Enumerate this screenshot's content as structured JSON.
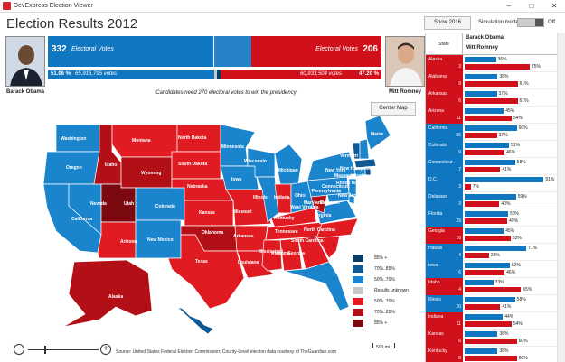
{
  "window": {
    "title": "DevExpress Election Viewer",
    "minimize": "–",
    "maximize": "□",
    "close": "✕"
  },
  "heading": "Election Results 2012",
  "toolbar": {
    "show_button": "Show 2016",
    "sim_label": "Simulation mode:",
    "sim_state": "Off"
  },
  "candidates": {
    "obama": {
      "name": "Barack Obama",
      "electoral_votes": "332",
      "ev_label": "Electoral Votes",
      "percent": "51.06 %",
      "votes": "65,915,795 votes",
      "color": "#0f76c2"
    },
    "romney": {
      "name": "Mitt Romney",
      "electoral_votes": "206",
      "ev_label": "Electoral Votes",
      "percent": "47.20 %",
      "votes": "60,933,504 votes",
      "color": "#d0101a"
    }
  },
  "notice": "Candidates need 270 electoral votes to win the presidency",
  "center_map": "Center Map",
  "states": {
    "washington": "Washington",
    "oregon": "Oregon",
    "california": "California",
    "nevada": "Nevada",
    "idaho": "Idaho",
    "montana": "Montana",
    "wyoming": "Wyoming",
    "utah": "Utah",
    "arizona": "Arizona",
    "colorado": "Colorado",
    "new_mexico": "New Mexico",
    "north_dakota": "North Dakota",
    "south_dakota": "South Dakota",
    "nebraska": "Nebraska",
    "kansas": "Kansas",
    "oklahoma": "Oklahoma",
    "texas": "Texas",
    "minnesota": "Minnesota",
    "iowa": "Iowa",
    "missouri": "Missouri",
    "arkansas": "Arkansas",
    "louisiana": "Louisiana",
    "wisconsin": "Wisconsin",
    "illinois": "Illinois",
    "michigan": "Michigan",
    "indiana": "Indiana",
    "ohio": "Ohio",
    "kentucky": "Kentucky",
    "tennessee": "Tennessee",
    "mississippi": "Mississippi",
    "alabama": "Alabama",
    "georgia": "Georgia",
    "florida": "Florida",
    "south_carolina": "South Carolina",
    "north_carolina": "North Carolina",
    "virginia": "Virginia",
    "west_virginia": "West Virginia",
    "pennsylvania": "Pennsylvania",
    "new_york": "New York",
    "maine": "Maine",
    "vermont": "Vermont",
    "new_hampshire": "New Hampshire",
    "massachusetts": "Massachusetts",
    "rhode_island": "Rhode Island",
    "connecticut": "Connecticut",
    "new_jersey": "New Jersey",
    "delaware": "Delaware",
    "maryland": "Maryland",
    "alaska": "Alaska",
    "hawaii": "Hawaii"
  },
  "legend": [
    {
      "label": "85% +",
      "color": "#0a3d66"
    },
    {
      "label": "70%..85%",
      "color": "#0d5a96"
    },
    {
      "label": "50%..70%",
      "color": "#1a84cc"
    },
    {
      "label": "Results unknown",
      "color": "#c8c8c8"
    },
    {
      "label": "50%..70%",
      "color": "#e01b22"
    },
    {
      "label": "70%..85%",
      "color": "#b30f16"
    },
    {
      "label": "85% +",
      "color": "#7a0a0f"
    }
  ],
  "source": "Source: United States Federal Election Commission; County-Level election data courtesy of TheGuardian.com",
  "scale": "500 mi",
  "zoom": {
    "minus": "−",
    "plus": "+"
  },
  "grid": {
    "col_state": "State",
    "col_obama": "Barack Obama",
    "col_romney": "Mitt Romney",
    "rows": [
      {
        "state": "Alaska",
        "ev": "3",
        "obama": "36%",
        "romney": "75%",
        "color": "#d0101a",
        "o": 0.36,
        "r": 0.75
      },
      {
        "state": "Alabama",
        "ev": "9",
        "obama": "38%",
        "romney": "61%",
        "color": "#d0101a",
        "o": 0.38,
        "r": 0.61
      },
      {
        "state": "Arkansas",
        "ev": "6",
        "obama": "37%",
        "romney": "61%",
        "color": "#d0101a",
        "o": 0.37,
        "r": 0.61
      },
      {
        "state": "Arizona",
        "ev": "11",
        "obama": "45%",
        "romney": "54%",
        "color": "#d0101a",
        "o": 0.45,
        "r": 0.54
      },
      {
        "state": "California",
        "ev": "55",
        "obama": "60%",
        "romney": "37%",
        "color": "#0f76c2",
        "o": 0.6,
        "r": 0.37
      },
      {
        "state": "Colorado",
        "ev": "9",
        "obama": "51%",
        "romney": "46%",
        "color": "#0f76c2",
        "o": 0.51,
        "r": 0.46
      },
      {
        "state": "Connecticut",
        "ev": "7",
        "obama": "58%",
        "romney": "41%",
        "color": "#0f76c2",
        "o": 0.58,
        "r": 0.41
      },
      {
        "state": "D.C.",
        "ev": "3",
        "obama": "91%",
        "romney": "7%",
        "color": "#0f76c2",
        "o": 0.91,
        "r": 0.07
      },
      {
        "state": "Delaware",
        "ev": "3",
        "obama": "59%",
        "romney": "40%",
        "color": "#0f76c2",
        "o": 0.59,
        "r": 0.4
      },
      {
        "state": "Florida",
        "ev": "29",
        "obama": "50%",
        "romney": "49%",
        "color": "#0f76c2",
        "o": 0.5,
        "r": 0.49
      },
      {
        "state": "Georgia",
        "ev": "16",
        "obama": "45%",
        "romney": "53%",
        "color": "#d0101a",
        "o": 0.45,
        "r": 0.53
      },
      {
        "state": "Hawaii",
        "ev": "4",
        "obama": "71%",
        "romney": "28%",
        "color": "#0f76c2",
        "o": 0.71,
        "r": 0.28
      },
      {
        "state": "Iowa",
        "ev": "6",
        "obama": "52%",
        "romney": "46%",
        "color": "#0f76c2",
        "o": 0.52,
        "r": 0.46
      },
      {
        "state": "Idaho",
        "ev": "4",
        "obama": "33%",
        "romney": "65%",
        "color": "#d0101a",
        "o": 0.33,
        "r": 0.65
      },
      {
        "state": "Illinois",
        "ev": "20",
        "obama": "58%",
        "romney": "41%",
        "color": "#0f76c2",
        "o": 0.58,
        "r": 0.41
      },
      {
        "state": "Indiana",
        "ev": "11",
        "obama": "44%",
        "romney": "54%",
        "color": "#d0101a",
        "o": 0.44,
        "r": 0.54
      },
      {
        "state": "Kansas",
        "ev": "6",
        "obama": "38%",
        "romney": "60%",
        "color": "#d0101a",
        "o": 0.38,
        "r": 0.6
      },
      {
        "state": "Kentucky",
        "ev": "8",
        "obama": "38%",
        "romney": "60%",
        "color": "#d0101a",
        "o": 0.38,
        "r": 0.6
      }
    ]
  }
}
